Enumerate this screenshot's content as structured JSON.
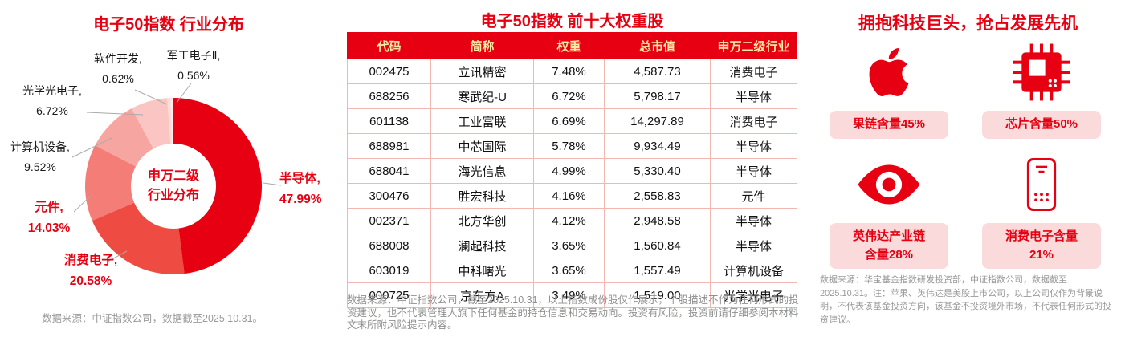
{
  "colors": {
    "accent": "#e60012",
    "card_background": "#fadada",
    "table_header_text": "#ffe9a3"
  },
  "left_panel": {
    "title": "电子50指数 行业分布",
    "center_label": "申万二级\n行业分布",
    "source": "数据来源：中证指数公司，数据截至2025.10.31。"
  },
  "chart_data": {
    "type": "pie",
    "donut": true,
    "title": "电子50指数 行业分布",
    "center_label": "申万二级 行业分布",
    "categories": [
      "半导体",
      "消费电子",
      "元件",
      "计算机设备",
      "光学光电子",
      "软件开发",
      "军工电子Ⅱ"
    ],
    "values": [
      47.99,
      20.58,
      14.03,
      9.52,
      6.72,
      0.62,
      0.56
    ],
    "colors": [
      "#e60012",
      "#ee4b43",
      "#f47d77",
      "#f7a5a0",
      "#fac5c2",
      "#fcdcda",
      "#fdebea"
    ],
    "legend_position": "labels-around-donut"
  },
  "table_panel": {
    "title": "电子50指数 前十大权重股",
    "columns": [
      "代码",
      "简称",
      "权重",
      "总市值",
      "申万二级行业"
    ],
    "rows": [
      [
        "002475",
        "立讯精密",
        "7.48%",
        "4,587.73",
        "消费电子"
      ],
      [
        "688256",
        "寒武纪-U",
        "6.72%",
        "5,798.17",
        "半导体"
      ],
      [
        "601138",
        "工业富联",
        "6.69%",
        "14,297.89",
        "消费电子"
      ],
      [
        "688981",
        "中芯国际",
        "5.78%",
        "9,934.49",
        "半导体"
      ],
      [
        "688041",
        "海光信息",
        "4.99%",
        "5,330.40",
        "半导体"
      ],
      [
        "300476",
        "胜宏科技",
        "4.16%",
        "2,558.83",
        "元件"
      ],
      [
        "002371",
        "北方华创",
        "4.12%",
        "2,948.58",
        "半导体"
      ],
      [
        "688008",
        "澜起科技",
        "3.65%",
        "1,560.84",
        "半导体"
      ],
      [
        "603019",
        "中科曙光",
        "3.65%",
        "1,557.49",
        "计算机设备"
      ],
      [
        "000725",
        "京东方A",
        "3.49%",
        "1,519.00",
        "光学光电子"
      ]
    ],
    "footnote": "数据来源：中证指数公司，截至2025.10.31，以上指数成份股仅作展示，个股描述不作为任何形式的投资建议，也不代表管理人旗下任何基金的持仓信息和交易动向。投资有风险，投资前请仔细参阅本材料文末所附风险提示内容。"
  },
  "right_panel": {
    "title": "拥抱科技巨头，抢占发展先机",
    "cards": [
      {
        "icon": "apple-logo",
        "label": "果链含量45%"
      },
      {
        "icon": "chip",
        "label": "芯片含量50%"
      },
      {
        "icon": "nvidia-logo",
        "label": "英伟达产业链\n含量28%"
      },
      {
        "icon": "phone",
        "label": "消费电子含量\n21%"
      }
    ],
    "footnote": "数据来源：华宝基金指数研发投资部，中证指数公司，数据截至2025.10.31。注：苹果、英伟达是美股上市公司，以上公司仅作为背景说明，不代表该基金投资方向，该基金不投资境外市场，不代表任何形式的投资建议。"
  }
}
